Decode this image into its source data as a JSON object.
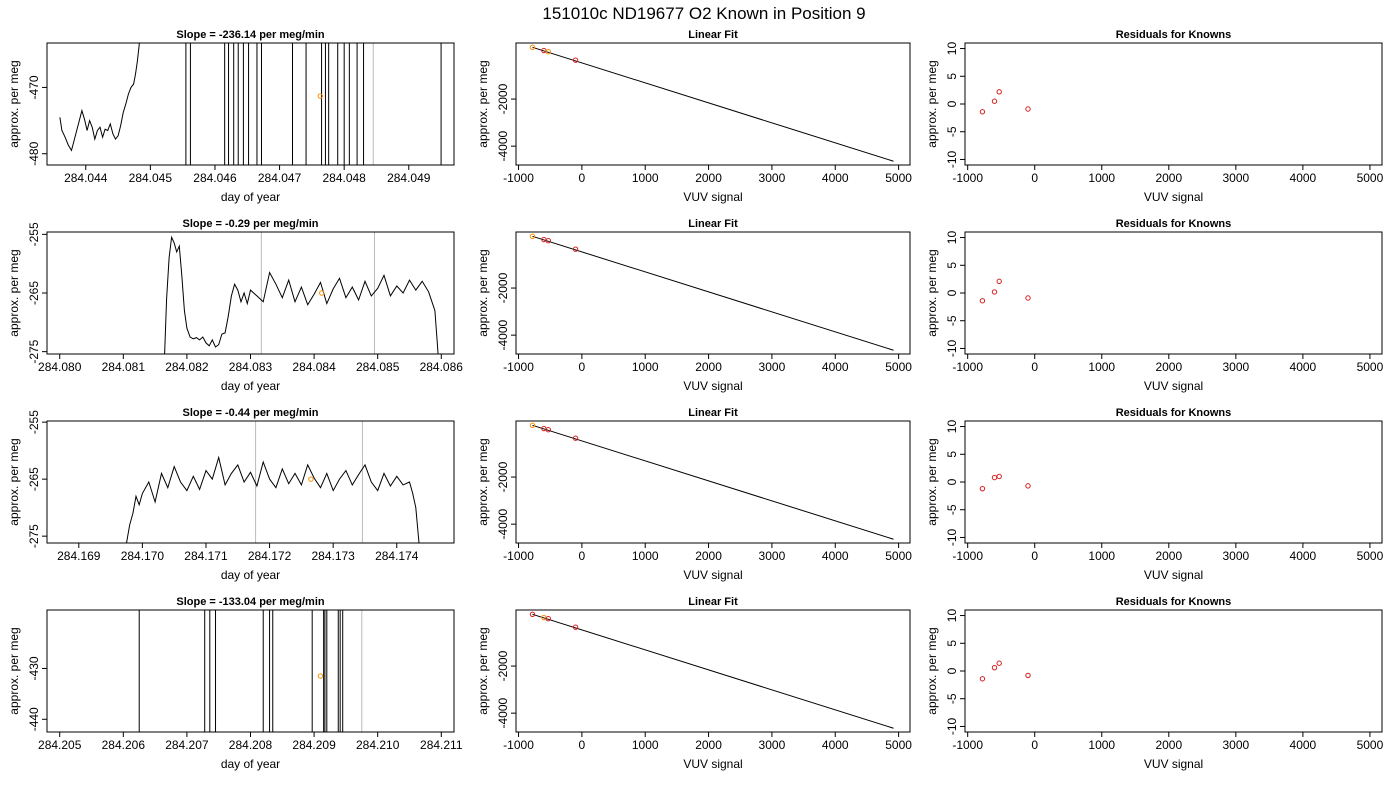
{
  "suptitle": "151010c     ND19677   O2 Known in Position  9",
  "chart_data": [
    {
      "type": "line",
      "title": "Slope =  -236.14  per meg/min",
      "xlabel": "day of year",
      "ylabel": "approx. per meg",
      "xlim": [
        284.0434,
        284.0497
      ],
      "ylim": [
        -481.7,
        -463.3
      ],
      "xticks": [
        284.044,
        284.045,
        284.046,
        284.047,
        284.048,
        284.049
      ],
      "xtick_labels": [
        "284.044",
        "284.045",
        "284.046",
        "284.047",
        "284.048",
        "284.049"
      ],
      "yticks": [
        -480,
        -470
      ],
      "ytick_labels": [
        "-480",
        "-470"
      ],
      "grid": false,
      "series": [
        {
          "x": [
            284.0436,
            284.04363,
            284.04368,
            284.04373,
            284.04378,
            284.04382,
            284.04386,
            284.0439,
            284.04394,
            284.04398,
            284.04402,
            284.04406,
            284.0441,
            284.04414,
            284.04418,
            284.04422,
            284.04426,
            284.0443,
            284.04434,
            284.04438,
            284.04442,
            284.04446,
            284.0445,
            284.04454,
            284.04458,
            284.04462,
            284.04466,
            284.0447,
            284.04474,
            284.04477,
            284.0448,
            284.04483
          ],
          "y": [
            -474.5,
            -476.5,
            -477.5,
            -478.7,
            -479.5,
            -478.0,
            -476.5,
            -475.0,
            -473.5,
            -474.8,
            -476.5,
            -475.0,
            -476.0,
            -477.8,
            -476.5,
            -476.0,
            -477.5,
            -476.3,
            -476.5,
            -475.5,
            -477.0,
            -477.8,
            -477.3,
            -475.8,
            -473.8,
            -472.5,
            -471.0,
            -470.0,
            -469.5,
            -468.0,
            -466.0,
            -463.3
          ]
        }
      ],
      "vlines_dark": [
        284.04555,
        284.04562,
        284.04615,
        284.04621,
        284.04629,
        284.04636,
        284.04644,
        284.04652,
        284.04665,
        284.04672,
        284.0472,
        284.04741,
        284.04765,
        284.04771,
        284.04776,
        284.0479,
        284.048,
        284.04808,
        284.0482,
        284.0483,
        284.0495
      ],
      "vlines_gray": [
        284.04845
      ],
      "marker": {
        "x": 284.04763,
        "y": -471.3
      }
    },
    {
      "type": "scatter",
      "title": "Linear Fit",
      "xlabel": "VUV signal",
      "ylabel": "approx. per meg",
      "xlim": [
        -1040,
        5180
      ],
      "ylim": [
        -4800,
        380
      ],
      "xticks": [
        -1000,
        0,
        1000,
        2000,
        3000,
        4000,
        5000
      ],
      "xtick_labels": [
        "-1000",
        "0",
        "1000",
        "2000",
        "3000",
        "4000",
        "5000"
      ],
      "yticks": [
        -4000,
        -2000
      ],
      "ytick_labels": [
        "-4000",
        "-2000"
      ],
      "grid": false,
      "fit_line": {
        "x": [
          -780,
          4920
        ],
        "y": [
          197,
          -4640
        ]
      },
      "points": {
        "x": [
          -780,
          -600,
          -530,
          -100
        ],
        "y": [
          198,
          60,
          10,
          -349
        ],
        "colors": [
          "#ff8c00",
          "#d62020",
          "#ff8c00",
          "#d62020"
        ]
      }
    },
    {
      "type": "scatter",
      "title": "Residuals for Knowns",
      "xlabel": "VUV signal",
      "ylabel": "approx. per meg",
      "xlim": [
        -1040,
        5180
      ],
      "ylim": [
        -11,
        11
      ],
      "xticks": [
        -1000,
        0,
        1000,
        2000,
        3000,
        4000,
        5000
      ],
      "xtick_labels": [
        "-1000",
        "0",
        "1000",
        "2000",
        "3000",
        "4000",
        "5000"
      ],
      "yticks": [
        -10,
        -5,
        0,
        5,
        10
      ],
      "ytick_labels": [
        "-10",
        "-5",
        "0",
        "5",
        "10"
      ],
      "grid": false,
      "points": {
        "x": [
          -780,
          -600,
          -530,
          -100
        ],
        "y": [
          -1.4,
          0.5,
          2.2,
          -0.9
        ],
        "colors": [
          "#d62020",
          "#d62020",
          "#d62020",
          "#d62020"
        ]
      }
    },
    {
      "type": "line",
      "title": "Slope =  -0.29  per meg/min",
      "xlabel": "day of year",
      "ylabel": "approx. per meg",
      "xlim": [
        284.0798,
        284.0862
      ],
      "ylim": [
        -275.4,
        -254.6
      ],
      "xticks": [
        284.08,
        284.081,
        284.082,
        284.083,
        284.084,
        284.085,
        284.086
      ],
      "xtick_labels": [
        "284.080",
        "284.081",
        "284.082",
        "284.083",
        "284.084",
        "284.085",
        "284.086"
      ],
      "yticks": [
        -275,
        -265,
        -255
      ],
      "ytick_labels": [
        "-275",
        "-265",
        "-255"
      ],
      "grid": false,
      "series": [
        {
          "x": [
            284.08165,
            284.08168,
            284.08172,
            284.08176,
            284.0818,
            284.08184,
            284.08188,
            284.08192,
            284.08196,
            284.082,
            284.08205,
            284.0821,
            284.08215,
            284.0822,
            284.08225,
            284.0823,
            284.08235,
            284.0824,
            284.08245,
            284.0825,
            284.08255,
            284.0826,
            284.08265,
            284.0827,
            284.08275,
            284.0828,
            284.08285,
            284.0829,
            284.08295,
            284.083,
            284.0831,
            284.0832,
            284.0833,
            284.0834,
            284.0835,
            284.0836,
            284.0837,
            284.0838,
            284.0839,
            284.084,
            284.0841,
            284.0842,
            284.0843,
            284.0844,
            284.0845,
            284.0846,
            284.0847,
            284.0848,
            284.0849,
            284.085,
            284.0851,
            284.0852,
            284.0853,
            284.0854,
            284.0855,
            284.0856,
            284.0857,
            284.0858,
            284.0859,
            284.08595
          ],
          "y": [
            -275.4,
            -266.0,
            -259.0,
            -255.5,
            -256.5,
            -258.0,
            -257.0,
            -262.0,
            -268.0,
            -271.0,
            -272.5,
            -272.8,
            -272.6,
            -273.0,
            -272.5,
            -273.5,
            -274.0,
            -273.0,
            -274.2,
            -273.8,
            -272.0,
            -271.8,
            -269.0,
            -265.5,
            -263.5,
            -264.5,
            -266.5,
            -265.0,
            -266.8,
            -264.5,
            -265.5,
            -266.5,
            -261.5,
            -263.5,
            -265.8,
            -262.8,
            -266.5,
            -264.0,
            -267.0,
            -265.2,
            -263.2,
            -266.8,
            -264.3,
            -262.5,
            -265.8,
            -264.0,
            -266.2,
            -263.0,
            -265.5,
            -264.2,
            -262.0,
            -265.5,
            -263.8,
            -265.0,
            -262.8,
            -264.5,
            -263.0,
            -264.8,
            -268.0,
            -275.4
          ]
        }
      ],
      "vlines_dark": [],
      "vlines_gray": [
        284.08317,
        284.08495
      ],
      "marker": {
        "x": 284.08412,
        "y": -265.0
      }
    },
    {
      "type": "scatter",
      "title": "Linear Fit",
      "xlabel": "VUV signal",
      "ylabel": "approx. per meg",
      "xlim": [
        -1040,
        5180
      ],
      "ylim": [
        -4800,
        380
      ],
      "xticks": [
        -1000,
        0,
        1000,
        2000,
        3000,
        4000,
        5000
      ],
      "xtick_labels": [
        "-1000",
        "0",
        "1000",
        "2000",
        "3000",
        "4000",
        "5000"
      ],
      "yticks": [
        -4000,
        -2000
      ],
      "ytick_labels": [
        "-4000",
        "-2000"
      ],
      "grid": false,
      "fit_line": {
        "x": [
          -780,
          4920
        ],
        "y": [
          197,
          -4640
        ]
      },
      "points": {
        "x": [
          -780,
          -600,
          -530,
          -100
        ],
        "y": [
          198,
          60,
          10,
          -349
        ],
        "colors": [
          "#ff8c00",
          "#d62020",
          "#d62020",
          "#d62020"
        ]
      }
    },
    {
      "type": "scatter",
      "title": "Residuals for Knowns",
      "xlabel": "VUV signal",
      "ylabel": "approx. per meg",
      "xlim": [
        -1040,
        5180
      ],
      "ylim": [
        -11,
        11
      ],
      "xticks": [
        -1000,
        0,
        1000,
        2000,
        3000,
        4000,
        5000
      ],
      "xtick_labels": [
        "-1000",
        "0",
        "1000",
        "2000",
        "3000",
        "4000",
        "5000"
      ],
      "yticks": [
        -10,
        -5,
        0,
        5,
        10
      ],
      "ytick_labels": [
        "-10",
        "-5",
        "0",
        "5",
        "10"
      ],
      "grid": false,
      "points": {
        "x": [
          -780,
          -600,
          -530,
          -100
        ],
        "y": [
          -1.4,
          0.2,
          2.1,
          -0.9
        ],
        "colors": [
          "#d62020",
          "#d62020",
          "#d62020",
          "#d62020"
        ]
      }
    },
    {
      "type": "line",
      "title": "Slope =  -0.44  per meg/min",
      "xlabel": "day of year",
      "ylabel": "approx. per meg",
      "xlim": [
        284.1685,
        284.1749
      ],
      "ylim": [
        -276.2,
        -254.8
      ],
      "xticks": [
        284.169,
        284.17,
        284.171,
        284.172,
        284.173,
        284.174
      ],
      "xtick_labels": [
        "284.169",
        "284.170",
        "284.171",
        "284.172",
        "284.173",
        "284.174"
      ],
      "yticks": [
        -275,
        -265,
        -255
      ],
      "ytick_labels": [
        "-275",
        "-265",
        "-255"
      ],
      "grid": false,
      "series": [
        {
          "x": [
            284.16975,
            284.1698,
            284.16985,
            284.1699,
            284.16995,
            284.17,
            284.1701,
            284.1702,
            284.1703,
            284.1704,
            284.1705,
            284.1706,
            284.1707,
            284.1708,
            284.1709,
            284.171,
            284.1711,
            284.1712,
            284.1713,
            284.1714,
            284.1715,
            284.1716,
            284.1717,
            284.1718,
            284.1719,
            284.172,
            284.1721,
            284.1722,
            284.1723,
            284.1724,
            284.1725,
            284.1726,
            284.1727,
            284.1728,
            284.1729,
            284.173,
            284.1731,
            284.1732,
            284.1733,
            284.1734,
            284.1735,
            284.1736,
            284.1737,
            284.1738,
            284.1739,
            284.174,
            284.1741,
            284.1742,
            284.17425,
            284.1743,
            284.17435
          ],
          "y": [
            -276.2,
            -273.0,
            -271.0,
            -268.0,
            -269.5,
            -267.5,
            -265.5,
            -269.0,
            -264.0,
            -266.5,
            -262.8,
            -265.5,
            -267.0,
            -264.5,
            -266.8,
            -263.5,
            -265.0,
            -261.2,
            -266.0,
            -264.0,
            -262.5,
            -265.5,
            -263.8,
            -266.2,
            -262.0,
            -265.0,
            -266.5,
            -263.2,
            -265.8,
            -264.0,
            -266.0,
            -262.5,
            -264.8,
            -266.5,
            -264.0,
            -267.0,
            -265.0,
            -263.5,
            -266.0,
            -264.2,
            -262.5,
            -265.5,
            -267.0,
            -264.0,
            -266.2,
            -264.5,
            -266.0,
            -265.5,
            -267.5,
            -270.0,
            -276.2
          ]
        }
      ],
      "vlines_dark": [],
      "vlines_gray": [
        284.17178,
        284.17346
      ],
      "marker": {
        "x": 284.17265,
        "y": -265.0
      }
    },
    {
      "type": "scatter",
      "title": "Linear Fit",
      "xlabel": "VUV signal",
      "ylabel": "approx. per meg",
      "xlim": [
        -1040,
        5180
      ],
      "ylim": [
        -4800,
        380
      ],
      "xticks": [
        -1000,
        0,
        1000,
        2000,
        3000,
        4000,
        5000
      ],
      "xtick_labels": [
        "-1000",
        "0",
        "1000",
        "2000",
        "3000",
        "4000",
        "5000"
      ],
      "yticks": [
        -4000,
        -2000
      ],
      "ytick_labels": [
        "-4000",
        "-2000"
      ],
      "grid": false,
      "fit_line": {
        "x": [
          -780,
          4920
        ],
        "y": [
          197,
          -4640
        ]
      },
      "points": {
        "x": [
          -780,
          -600,
          -530,
          -100
        ],
        "y": [
          198,
          60,
          10,
          -349
        ],
        "colors": [
          "#ff8c00",
          "#d62020",
          "#d62020",
          "#d62020"
        ]
      }
    },
    {
      "type": "scatter",
      "title": "Residuals for Knowns",
      "xlabel": "VUV signal",
      "ylabel": "approx. per meg",
      "xlim": [
        -1040,
        5180
      ],
      "ylim": [
        -11,
        11
      ],
      "xticks": [
        -1000,
        0,
        1000,
        2000,
        3000,
        4000,
        5000
      ],
      "xtick_labels": [
        "-1000",
        "0",
        "1000",
        "2000",
        "3000",
        "4000",
        "5000"
      ],
      "yticks": [
        -10,
        -5,
        0,
        5,
        10
      ],
      "ytick_labels": [
        "-10",
        "-5",
        "0",
        "5",
        "10"
      ],
      "grid": false,
      "points": {
        "x": [
          -780,
          -600,
          -530,
          -100
        ],
        "y": [
          -1.2,
          0.8,
          1.0,
          -0.7
        ],
        "colors": [
          "#d62020",
          "#d62020",
          "#d62020",
          "#d62020"
        ]
      }
    },
    {
      "type": "line",
      "title": "Slope =  -133.04  per meg/min",
      "xlabel": "day of year",
      "ylabel": "approx. per meg",
      "xlim": [
        284.2048,
        284.2112
      ],
      "ylim": [
        -442.5,
        -418.5
      ],
      "xticks": [
        284.205,
        284.206,
        284.207,
        284.208,
        284.209,
        284.21,
        284.211
      ],
      "xtick_labels": [
        "284.205",
        "284.206",
        "284.207",
        "284.208",
        "284.209",
        "284.210",
        "284.211"
      ],
      "yticks": [
        -440,
        -430
      ],
      "ytick_labels": [
        "-440",
        "-430"
      ],
      "grid": false,
      "series": [],
      "vlines_dark": [
        284.20625,
        284.20728,
        284.20736,
        284.20745,
        284.2082,
        284.2083,
        284.20835,
        284.20897,
        284.20915,
        284.20917,
        284.2092,
        284.20938,
        284.20941,
        284.20945
      ],
      "vlines_gray": [
        284.20975
      ],
      "marker": {
        "x": 284.2091,
        "y": -431.5
      }
    },
    {
      "type": "scatter",
      "title": "Linear Fit",
      "xlabel": "VUV signal",
      "ylabel": "approx. per meg",
      "xlim": [
        -1040,
        5180
      ],
      "ylim": [
        -4800,
        380
      ],
      "xticks": [
        -1000,
        0,
        1000,
        2000,
        3000,
        4000,
        5000
      ],
      "xtick_labels": [
        "-1000",
        "0",
        "1000",
        "2000",
        "3000",
        "4000",
        "5000"
      ],
      "yticks": [
        -4000,
        -2000
      ],
      "ytick_labels": [
        "-4000",
        "-2000"
      ],
      "grid": false,
      "fit_line": {
        "x": [
          -780,
          4920
        ],
        "y": [
          197,
          -4640
        ]
      },
      "points": {
        "x": [
          -780,
          -600,
          -530,
          -100
        ],
        "y": [
          198,
          60,
          10,
          -349
        ],
        "colors": [
          "#d62020",
          "#ff8c00",
          "#d62020",
          "#d62020"
        ]
      }
    },
    {
      "type": "scatter",
      "title": "Residuals for Knowns",
      "xlabel": "VUV signal",
      "ylabel": "approx. per meg",
      "xlim": [
        -1040,
        5180
      ],
      "ylim": [
        -11,
        11
      ],
      "xticks": [
        -1000,
        0,
        1000,
        2000,
        3000,
        4000,
        5000
      ],
      "xtick_labels": [
        "-1000",
        "0",
        "1000",
        "2000",
        "3000",
        "4000",
        "5000"
      ],
      "yticks": [
        -10,
        -5,
        0,
        5,
        10
      ],
      "ytick_labels": [
        "-10",
        "-5",
        "0",
        "5",
        "10"
      ],
      "grid": false,
      "points": {
        "x": [
          -780,
          -600,
          -530,
          -100
        ],
        "y": [
          -1.4,
          0.6,
          1.4,
          -0.8
        ],
        "colors": [
          "#d62020",
          "#d62020",
          "#d62020",
          "#d62020"
        ]
      }
    }
  ],
  "colors": {
    "line": "#000000",
    "vline_gray": "#bbbbbb",
    "marker": "#ff8c00",
    "point_red": "#d62020",
    "point_orange": "#ff8c00"
  }
}
